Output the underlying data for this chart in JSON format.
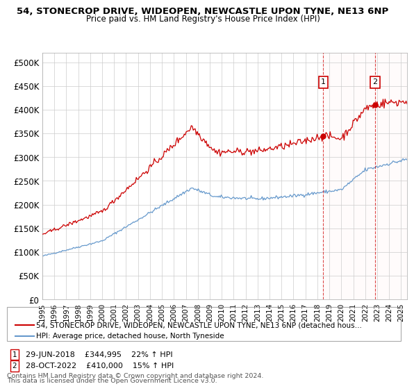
{
  "title1": "54, STONECROP DRIVE, WIDEOPEN, NEWCASTLE UPON TYNE, NE13 6NP",
  "title2": "Price paid vs. HM Land Registry's House Price Index (HPI)",
  "ylabel_ticks": [
    "£0",
    "£50K",
    "£100K",
    "£150K",
    "£200K",
    "£250K",
    "£300K",
    "£350K",
    "£400K",
    "£450K",
    "£500K"
  ],
  "ytick_vals": [
    0,
    50000,
    100000,
    150000,
    200000,
    250000,
    300000,
    350000,
    400000,
    450000,
    500000
  ],
  "ylim": [
    0,
    520000
  ],
  "xlim_start": 1995.0,
  "xlim_end": 2025.5,
  "hpi_color": "#6699cc",
  "price_color": "#cc0000",
  "marker1_date": 2018.49,
  "marker1_price": 344995,
  "marker2_date": 2022.83,
  "marker2_price": 410000,
  "marker1_text": "29-JUN-2018    £344,995    22% ↑ HPI",
  "marker2_text": "28-OCT-2022    £410,000    15% ↑ HPI",
  "legend_line1": "54, STONECROP DRIVE, WIDEOPEN, NEWCASTLE UPON TYNE, NE13 6NP (detached hous…",
  "legend_line2": "HPI: Average price, detached house, North Tyneside",
  "footer1": "Contains HM Land Registry data © Crown copyright and database right 2024.",
  "footer2": "This data is licensed under the Open Government Licence v3.0.",
  "bg_color": "#ffffff",
  "plot_bg": "#ffffff",
  "grid_color": "#cccccc"
}
